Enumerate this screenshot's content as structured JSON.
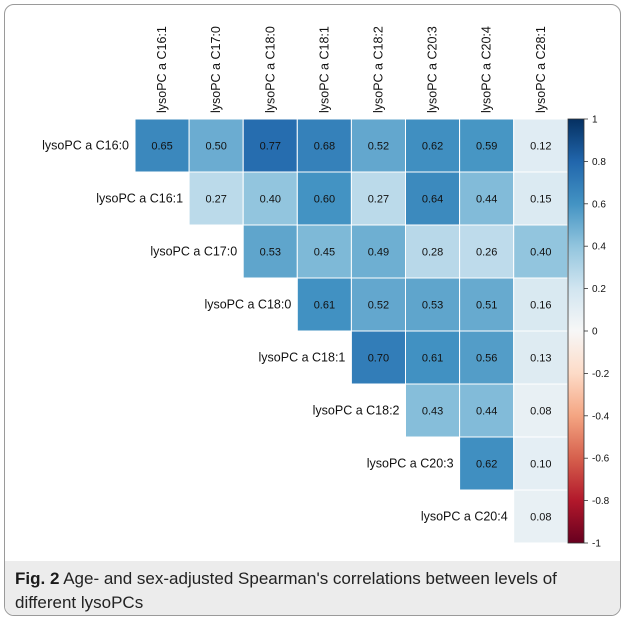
{
  "caption": {
    "label": "Fig. 2",
    "text": "Age- and sex-adjusted Spearman's correlations between levels of different lysoPCs"
  },
  "chart_data": {
    "type": "heatmap",
    "title": "",
    "layout": "upper-triangle correlation matrix",
    "columns": [
      "lysoPC a C16:1",
      "lysoPC a C17:0",
      "lysoPC a C18:0",
      "lysoPC a C18:1",
      "lysoPC a C18:2",
      "lysoPC a C20:3",
      "lysoPC a C20:4",
      "lysoPC a C28:1"
    ],
    "rows": [
      {
        "label": "lysoPC a C16:0",
        "values": [
          "0.65",
          "0.50",
          "0.77",
          "0.68",
          "0.52",
          "0.62",
          "0.59",
          "0.12"
        ]
      },
      {
        "label": "lysoPC a C16:1",
        "values": [
          "0.27",
          "0.40",
          "0.60",
          "0.27",
          "0.64",
          "0.44",
          "0.15"
        ]
      },
      {
        "label": "lysoPC a C17:0",
        "values": [
          "0.53",
          "0.45",
          "0.49",
          "0.28",
          "0.26",
          "0.40"
        ]
      },
      {
        "label": "lysoPC a C18:0",
        "values": [
          "0.61",
          "0.52",
          "0.53",
          "0.51",
          "0.16"
        ]
      },
      {
        "label": "lysoPC a C18:1",
        "values": [
          "0.70",
          "0.61",
          "0.56",
          "0.13"
        ]
      },
      {
        "label": "lysoPC a C18:2",
        "values": [
          "0.43",
          "0.44",
          "0.08"
        ]
      },
      {
        "label": "lysoPC a C20:3",
        "values": [
          "0.62",
          "0.10"
        ]
      },
      {
        "label": "lysoPC a C20:4",
        "values": [
          "0.08"
        ]
      }
    ],
    "colorbar": {
      "range": [
        -1,
        1
      ],
      "ticks": [
        "1",
        "0.8",
        "0.6",
        "0.4",
        "0.2",
        "0",
        "-0.2",
        "-0.4",
        "-0.6",
        "-0.8",
        "-1"
      ]
    },
    "colors": {
      "negative_end": "#67001f",
      "negative_mid": "#d6604d",
      "neutral": "#f7f7f7",
      "positive_mid": "#4393c3",
      "positive_end": "#053061"
    }
  }
}
